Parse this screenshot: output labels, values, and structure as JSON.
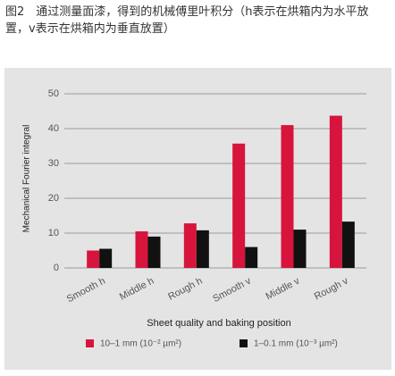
{
  "chart_data": {
    "type": "bar",
    "title": "图2　通过测量面漆，得到的机械傅里叶积分（h表示在烘箱内为水平放置，v表示在烘箱内为垂直放置）",
    "x_label": "Sheet quality and baking position",
    "y_label": "Mechanical Fourier integral",
    "categories": [
      "Smooth h",
      "Middle h",
      "Rough h",
      "Smooth v",
      "Middle v",
      "Rough v"
    ],
    "series": [
      {
        "name": "10–1 mm (10⁻² µm²)",
        "color": "#d7143c",
        "values": [
          5,
          10.5,
          12.8,
          35.7,
          41,
          43.7
        ]
      },
      {
        "name": "1–0.1 mm (10⁻³ µm²)",
        "color": "#111111",
        "values": [
          5.5,
          9,
          10.8,
          6,
          11,
          13.3
        ]
      }
    ],
    "ylim": [
      0,
      50
    ],
    "yticks": [
      0,
      10,
      20,
      30,
      40,
      50
    ],
    "grid": true
  }
}
